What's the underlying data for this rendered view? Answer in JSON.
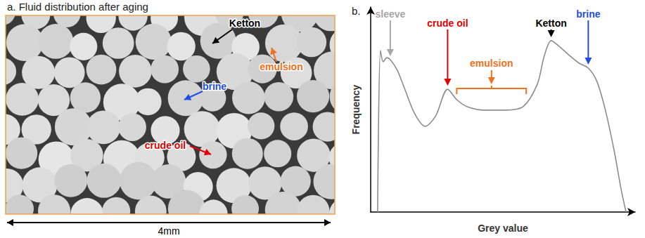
{
  "panel_a": {
    "title": "a. Fluid distribution after aging",
    "labels": [
      {
        "text": "Ketton",
        "color": "#000000"
      },
      {
        "text": "brine",
        "color": "#1f4fe0"
      },
      {
        "text": "emulsion",
        "color": "#f07020"
      },
      {
        "text": "crude oil",
        "color": "#e00000"
      }
    ],
    "scale_bar": "4mm"
  },
  "chart_data": {
    "type": "line",
    "title": "b.",
    "x_label": "Grey value",
    "y_label": "Frequency",
    "x": [
      6.7,
      9.4,
      12.1,
      15.5,
      18.9,
      25.6,
      32.4,
      42.5,
      52.6,
      62.7,
      74.2,
      83.0,
      93.1,
      110,
      130.2,
      147,
      160.6,
      167.3,
      174,
      180.8,
      190.9,
      201,
      209.8,
      217.9,
      226,
      234.8,
      241.5,
      246.2
    ],
    "values": [
      0,
      78.8,
      73.3,
      75.3,
      74.3,
      69.2,
      60.6,
      47.9,
      41.8,
      46.9,
      59.9,
      54.8,
      51.4,
      49.7,
      49.7,
      51.4,
      62.3,
      76.0,
      83.6,
      81.2,
      76.7,
      72.6,
      70.2,
      64.0,
      50.3,
      29.8,
      11,
      0
    ],
    "color": "#8c8c8c",
    "xlim": [
      0,
      255
    ],
    "ylim": [
      0,
      100
    ],
    "xticks": [],
    "yticks": [],
    "tick_labels": false,
    "grid": false,
    "annotations": [
      {
        "text": "sleeve",
        "x": 18.9,
        "y": 74.3,
        "color": "#a6a6a6"
      },
      {
        "text": "crude oil",
        "x": 74.2,
        "y": 59.9,
        "color": "#e00000"
      },
      {
        "text": "emulsion",
        "x_range": [
          83,
          150
        ],
        "color": "#f07020"
      },
      {
        "text": "Ketton",
        "x": 174,
        "y": 83.6,
        "color": "#000000"
      },
      {
        "text": "brine",
        "x": 209.8,
        "y": 70.2,
        "color": "#1f4fe0"
      }
    ]
  }
}
